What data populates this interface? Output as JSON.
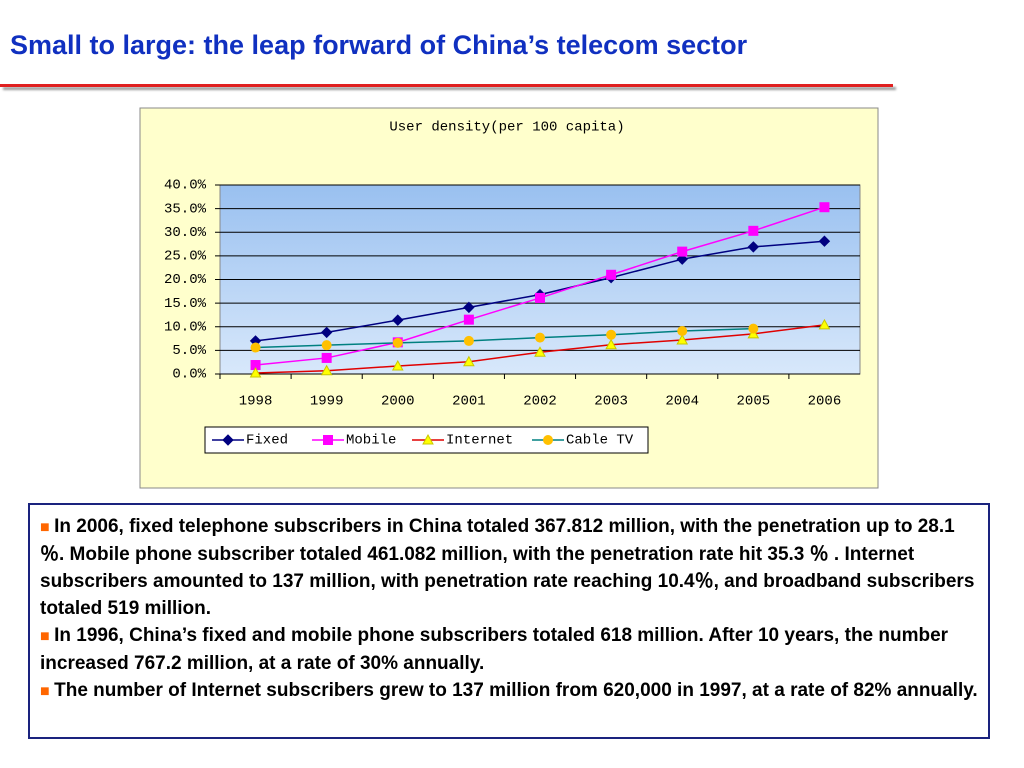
{
  "slide_title": "Small to large: the leap forward of China’s telecom sector",
  "chart_data": {
    "type": "line",
    "title": "User density(per 100 capita)",
    "categories": [
      "1998",
      "1999",
      "2000",
      "2001",
      "2002",
      "2003",
      "2004",
      "2005",
      "2006"
    ],
    "series": [
      {
        "name": "Fixed",
        "color": "#000080",
        "marker": "diamond",
        "marker_color": "#000080",
        "values": [
          7.0,
          8.8,
          11.4,
          14.1,
          16.8,
          20.4,
          24.3,
          26.9,
          28.1
        ]
      },
      {
        "name": "Mobile",
        "color": "#ff00ff",
        "marker": "square",
        "marker_color": "#ff00ff",
        "values": [
          1.9,
          3.4,
          6.7,
          11.5,
          16.1,
          21.0,
          25.9,
          30.3,
          35.3
        ]
      },
      {
        "name": "Internet",
        "color": "#e00000",
        "marker": "triangle",
        "marker_color": "#ffff00",
        "values": [
          0.2,
          0.7,
          1.7,
          2.6,
          4.6,
          6.2,
          7.2,
          8.5,
          10.4
        ]
      },
      {
        "name": "Cable TV",
        "color": "#008080",
        "marker": "circle",
        "marker_color": "#ffc000",
        "values": [
          5.6,
          6.1,
          6.6,
          7.0,
          7.7,
          8.3,
          9.1,
          9.6,
          null
        ]
      }
    ],
    "ylim": [
      0,
      40
    ],
    "yticks": [
      {
        "value": 0,
        "label": "0.0%"
      },
      {
        "value": 5,
        "label": "5.0%"
      },
      {
        "value": 10,
        "label": "10.0%"
      },
      {
        "value": 15,
        "label": "15.0%"
      },
      {
        "value": 20,
        "label": "20.0%"
      },
      {
        "value": 25,
        "label": "25.0%"
      },
      {
        "value": 30,
        "label": "30.0%"
      },
      {
        "value": 35,
        "label": "35.0%"
      },
      {
        "value": 40,
        "label": "40.0%"
      }
    ],
    "grid": true,
    "legend": "bottom"
  },
  "bullets": [
    "In 2006,  fixed telephone subscribers in China totaled 367.812 million, with the penetration up to 28.1  ％. Mobile phone subscriber totaled 461.082 million, with the penetration rate hit 35.3 ％ . Internet subscribers amounted to 137 million, with penetration rate reaching 10.4％, and broadband subscribers totaled 519 million.",
    "In 1996, China’s fixed and mobile phone subscribers totaled 618 million. After 10 years, the number increased 767.2 million, at a rate of 30% annually.",
    "The number of Internet subscribers grew to 137 million from 620,000 in 1997, at a rate of 82% annually."
  ]
}
